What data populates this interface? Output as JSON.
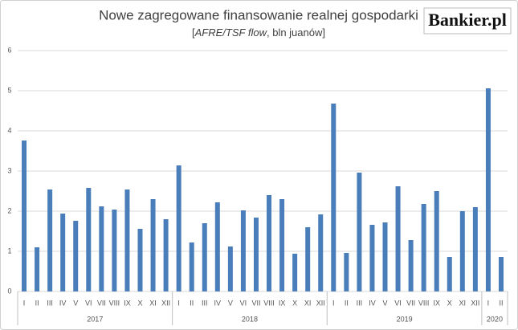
{
  "chart_data": {
    "type": "bar",
    "title": "Nowe zagregowane finansowanie  realnej gospodarki",
    "subtitle": [
      "[",
      "AFRE/TSF flow",
      ", bln juanów]"
    ],
    "logo": "Bankier.pl",
    "groups": [
      {
        "label": "2017",
        "categories": [
          "I",
          "II",
          "III",
          "IV",
          "V",
          "VI",
          "VII",
          "VIII",
          "IX",
          "X",
          "XI",
          "XII"
        ]
      },
      {
        "label": "2018",
        "categories": [
          "I",
          "II",
          "III",
          "IV",
          "V",
          "VI",
          "VII",
          "VIII",
          "IX",
          "X",
          "XI",
          "XII"
        ]
      },
      {
        "label": "2019",
        "categories": [
          "I",
          "II",
          "III",
          "IV",
          "V",
          "VI",
          "VII",
          "VIII",
          "IX",
          "X",
          "XI",
          "XII"
        ]
      },
      {
        "label": "2020",
        "categories": [
          "I",
          "II"
        ]
      }
    ],
    "values": [
      3.76,
      1.1,
      2.54,
      1.94,
      1.76,
      2.58,
      2.12,
      2.04,
      2.54,
      1.56,
      2.3,
      1.8,
      3.14,
      1.22,
      1.7,
      2.22,
      1.12,
      2.02,
      1.84,
      2.4,
      2.3,
      0.94,
      1.6,
      1.92,
      4.68,
      0.96,
      2.96,
      1.66,
      1.72,
      2.62,
      1.28,
      2.18,
      2.5,
      0.86,
      2.0,
      2.1,
      5.06,
      0.86
    ],
    "color": "#4a7ebb",
    "ylim": [
      0,
      6
    ],
    "yticks": [
      0,
      1,
      2,
      3,
      4,
      5,
      6
    ],
    "grid": true
  }
}
